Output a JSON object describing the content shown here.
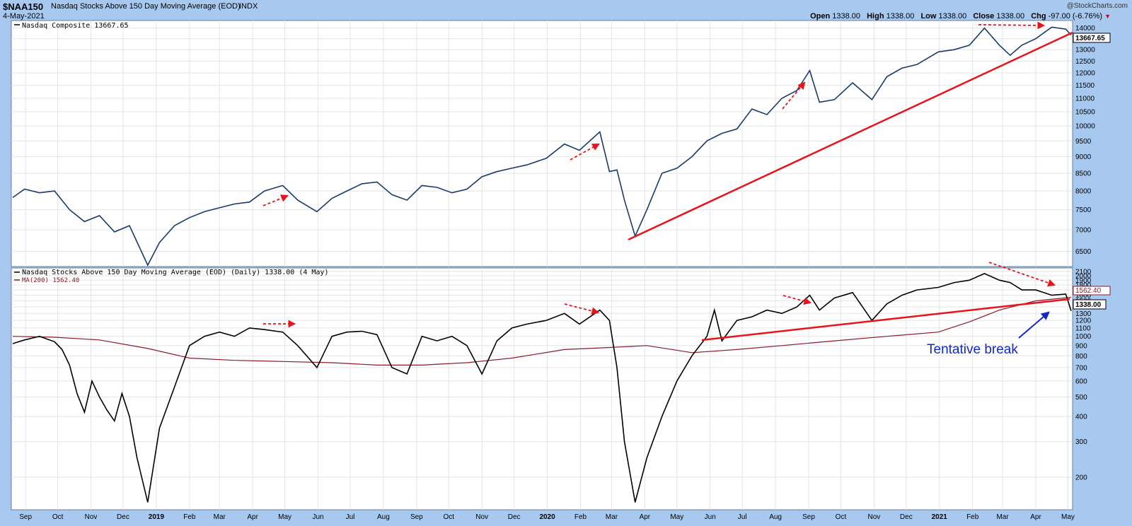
{
  "header": {
    "symbol": "$NAA150",
    "description": "Nasdaq Stocks Above 150 Day Moving Average (EOD)",
    "exchange": "INDX",
    "date": "4-May-2021",
    "credit": "@StockCharts.com",
    "open_label": "Open",
    "open": "1338.00",
    "high_label": "High",
    "high": "1338.00",
    "low_label": "Low",
    "low": "1338.00",
    "close_label": "Close",
    "close": "1338.00",
    "chg_label": "Chg",
    "chg": "-97.00 (-6.76%)"
  },
  "colors": {
    "background": "#a8c9ef",
    "panel": "#ffffff",
    "nasdaq_line": "#1a3a6b",
    "breadth_line": "#000000",
    "ma_line": "#8b1a2b",
    "trendline": "#e8141c",
    "annotation": "#1228c8"
  },
  "chart_data": [
    {
      "type": "line",
      "panel": "top",
      "legend": "Nasdaq Composite 13667.65",
      "last_value_label": "13667.65",
      "y_scale": "log",
      "ylim": [
        6200,
        14300
      ],
      "y_ticks": [
        6500,
        7000,
        7500,
        8000,
        8500,
        9000,
        9500,
        10000,
        10500,
        11000,
        11500,
        12000,
        12500,
        13000,
        13500,
        14000
      ],
      "grid": true,
      "series": [
        {
          "name": "Nasdaq Composite",
          "x": [
            "2018-08-20",
            "2018-08-31",
            "2018-09-14",
            "2018-09-28",
            "2018-10-12",
            "2018-10-26",
            "2018-11-09",
            "2018-11-23",
            "2018-12-07",
            "2018-12-24",
            "2019-01-04",
            "2019-01-18",
            "2019-02-01",
            "2019-02-15",
            "2019-03-01",
            "2019-03-15",
            "2019-03-29",
            "2019-04-12",
            "2019-04-29",
            "2019-05-13",
            "2019-05-31",
            "2019-06-14",
            "2019-06-28",
            "2019-07-12",
            "2019-07-26",
            "2019-08-09",
            "2019-08-23",
            "2019-09-06",
            "2019-09-20",
            "2019-10-04",
            "2019-10-18",
            "2019-11-01",
            "2019-11-15",
            "2019-11-29",
            "2019-12-13",
            "2019-12-31",
            "2020-01-17",
            "2020-01-31",
            "2020-02-19",
            "2020-02-28",
            "2020-03-06",
            "2020-03-13",
            "2020-03-23",
            "2020-04-03",
            "2020-04-17",
            "2020-05-01",
            "2020-05-15",
            "2020-05-29",
            "2020-06-12",
            "2020-06-26",
            "2020-07-10",
            "2020-07-24",
            "2020-08-07",
            "2020-08-21",
            "2020-09-02",
            "2020-09-11",
            "2020-09-25",
            "2020-10-12",
            "2020-10-30",
            "2020-11-13",
            "2020-11-27",
            "2020-12-11",
            "2020-12-31",
            "2021-01-15",
            "2021-01-29",
            "2021-02-12",
            "2021-02-26",
            "2021-03-08",
            "2021-03-19",
            "2021-04-01",
            "2021-04-16",
            "2021-04-29",
            "2021-05-04"
          ],
          "values": [
            7820,
            8050,
            7950,
            8000,
            7500,
            7200,
            7350,
            6950,
            7100,
            6200,
            6700,
            7100,
            7300,
            7450,
            7550,
            7650,
            7700,
            8000,
            8150,
            7750,
            7450,
            7800,
            8000,
            8200,
            8250,
            7900,
            7750,
            8150,
            8100,
            7950,
            8050,
            8400,
            8550,
            8650,
            8750,
            8950,
            9400,
            9200,
            9800,
            8550,
            8600,
            7750,
            6850,
            7500,
            8500,
            8650,
            9000,
            9500,
            9750,
            9900,
            10600,
            10400,
            11000,
            11300,
            12100,
            10850,
            10950,
            11600,
            10950,
            11850,
            12200,
            12350,
            12900,
            13000,
            13200,
            14000,
            13200,
            12750,
            13200,
            13500,
            14050,
            13950,
            13667.65
          ]
        }
      ],
      "annotations": [
        "dashed-arrow",
        "dashed-arrow",
        "dashed-arrow",
        "dashed-arrow",
        "trendline"
      ]
    },
    {
      "type": "line",
      "panel": "bottom",
      "legend": "Nasdaq Stocks Above 150 Day Moving Average (EOD) (Daily) 1338.00 (4 May)",
      "ma_legend": "MA(200) 1562.40",
      "last_value_label": "1338.00",
      "ma_value_label": "1562.40",
      "y_scale": "log",
      "ylim": [
        140,
        2150
      ],
      "y_ticks": [
        200,
        300,
        400,
        500,
        600,
        700,
        800,
        900,
        1000,
        1100,
        1200,
        1300,
        1400,
        1500,
        1600,
        1700,
        1800,
        1900,
        2000,
        2100
      ],
      "y_tick_labels": [
        "200",
        "300",
        "400",
        "500",
        "600",
        "700",
        "800",
        "900",
        "1000",
        "1100",
        "1200",
        "1300",
        "1400",
        "1500",
        "1600",
        "1700",
        "1800",
        "1900",
        "2000",
        "2100"
      ],
      "grid": true,
      "series": [
        {
          "name": "Nasdaq Stocks Above 150 Day Moving Average",
          "x": [
            "2018-08-20",
            "2018-08-31",
            "2018-09-14",
            "2018-09-28",
            "2018-10-05",
            "2018-10-12",
            "2018-10-19",
            "2018-10-26",
            "2018-11-02",
            "2018-11-09",
            "2018-11-16",
            "2018-11-23",
            "2018-11-30",
            "2018-12-07",
            "2018-12-14",
            "2018-12-24",
            "2019-01-04",
            "2019-01-18",
            "2019-02-01",
            "2019-02-15",
            "2019-03-01",
            "2019-03-15",
            "2019-03-29",
            "2019-04-12",
            "2019-04-29",
            "2019-05-13",
            "2019-05-31",
            "2019-06-14",
            "2019-06-28",
            "2019-07-12",
            "2019-07-26",
            "2019-08-09",
            "2019-08-23",
            "2019-09-06",
            "2019-09-20",
            "2019-10-04",
            "2019-10-18",
            "2019-11-01",
            "2019-11-15",
            "2019-11-29",
            "2019-12-13",
            "2019-12-31",
            "2020-01-17",
            "2020-01-31",
            "2020-02-19",
            "2020-02-28",
            "2020-03-06",
            "2020-03-13",
            "2020-03-23",
            "2020-04-03",
            "2020-04-17",
            "2020-05-01",
            "2020-05-15",
            "2020-05-29",
            "2020-06-05",
            "2020-06-12",
            "2020-06-26",
            "2020-07-10",
            "2020-07-24",
            "2020-08-07",
            "2020-08-21",
            "2020-09-02",
            "2020-09-11",
            "2020-09-25",
            "2020-10-12",
            "2020-10-30",
            "2020-11-13",
            "2020-11-27",
            "2020-12-11",
            "2020-12-31",
            "2021-01-15",
            "2021-01-29",
            "2021-02-12",
            "2021-02-26",
            "2021-03-08",
            "2021-03-19",
            "2021-04-01",
            "2021-04-16",
            "2021-04-29",
            "2021-05-04"
          ],
          "values": [
            920,
            960,
            1000,
            940,
            860,
            720,
            520,
            420,
            600,
            500,
            430,
            380,
            520,
            400,
            250,
            150,
            350,
            560,
            900,
            1000,
            1050,
            1000,
            1100,
            1080,
            1050,
            900,
            700,
            1000,
            1050,
            1060,
            1020,
            700,
            650,
            1000,
            950,
            1000,
            900,
            650,
            950,
            1100,
            1150,
            1200,
            1300,
            1150,
            1350,
            1200,
            700,
            300,
            150,
            250,
            400,
            600,
            800,
            1000,
            1350,
            950,
            1200,
            1250,
            1350,
            1300,
            1400,
            1600,
            1350,
            1550,
            1650,
            1200,
            1450,
            1600,
            1700,
            1750,
            1850,
            1900,
            2050,
            1900,
            1850,
            1700,
            1700,
            1600,
            1620,
            1338
          ]
        },
        {
          "name": "MA(200)",
          "x": [
            "2018-08-20",
            "2018-09-28",
            "2018-11-09",
            "2018-12-24",
            "2019-02-01",
            "2019-03-15",
            "2019-04-29",
            "2019-06-14",
            "2019-07-26",
            "2019-09-06",
            "2019-10-18",
            "2019-11-29",
            "2020-01-17",
            "2020-02-28",
            "2020-04-03",
            "2020-05-15",
            "2020-06-26",
            "2020-08-07",
            "2020-09-25",
            "2020-11-13",
            "2020-12-31",
            "2021-01-29",
            "2021-02-26",
            "2021-04-01",
            "2021-05-04"
          ],
          "values": [
            1000,
            990,
            960,
            870,
            780,
            760,
            750,
            740,
            720,
            720,
            740,
            780,
            860,
            880,
            900,
            830,
            860,
            900,
            950,
            1000,
            1050,
            1180,
            1350,
            1500,
            1562.4
          ]
        }
      ],
      "annotations": [
        "dashed-arrow",
        "dashed-arrow",
        "dashed-arrow",
        "dashed-arrow",
        "dashed-arrow",
        "trendline",
        "arrow"
      ],
      "annotation_text": "Tentative break"
    }
  ],
  "x_axis": {
    "labels": [
      "Sep",
      "Oct",
      "Nov",
      "Dec",
      "2019",
      "Feb",
      "Mar",
      "Apr",
      "May",
      "Jun",
      "Jul",
      "Aug",
      "Sep",
      "Oct",
      "Nov",
      "Dec",
      "2020",
      "Feb",
      "Mar",
      "Apr",
      "May",
      "Jun",
      "Jul",
      "Aug",
      "Sep",
      "Oct",
      "Nov",
      "Dec",
      "2021",
      "Feb",
      "Mar",
      "Apr",
      "May"
    ],
    "dates": [
      "2018-09-01",
      "2018-10-01",
      "2018-11-01",
      "2018-12-01",
      "2019-01-01",
      "2019-02-01",
      "2019-03-01",
      "2019-04-01",
      "2019-05-01",
      "2019-06-01",
      "2019-07-01",
      "2019-08-01",
      "2019-09-01",
      "2019-10-01",
      "2019-11-01",
      "2019-12-01",
      "2020-01-01",
      "2020-02-01",
      "2020-03-01",
      "2020-04-01",
      "2020-05-01",
      "2020-06-01",
      "2020-07-01",
      "2020-08-01",
      "2020-09-01",
      "2020-10-01",
      "2020-11-01",
      "2020-12-01",
      "2021-01-01",
      "2021-02-01",
      "2021-03-01",
      "2021-04-01",
      "2021-05-01"
    ],
    "bold": [
      "2019",
      "2020",
      "2021"
    ]
  }
}
